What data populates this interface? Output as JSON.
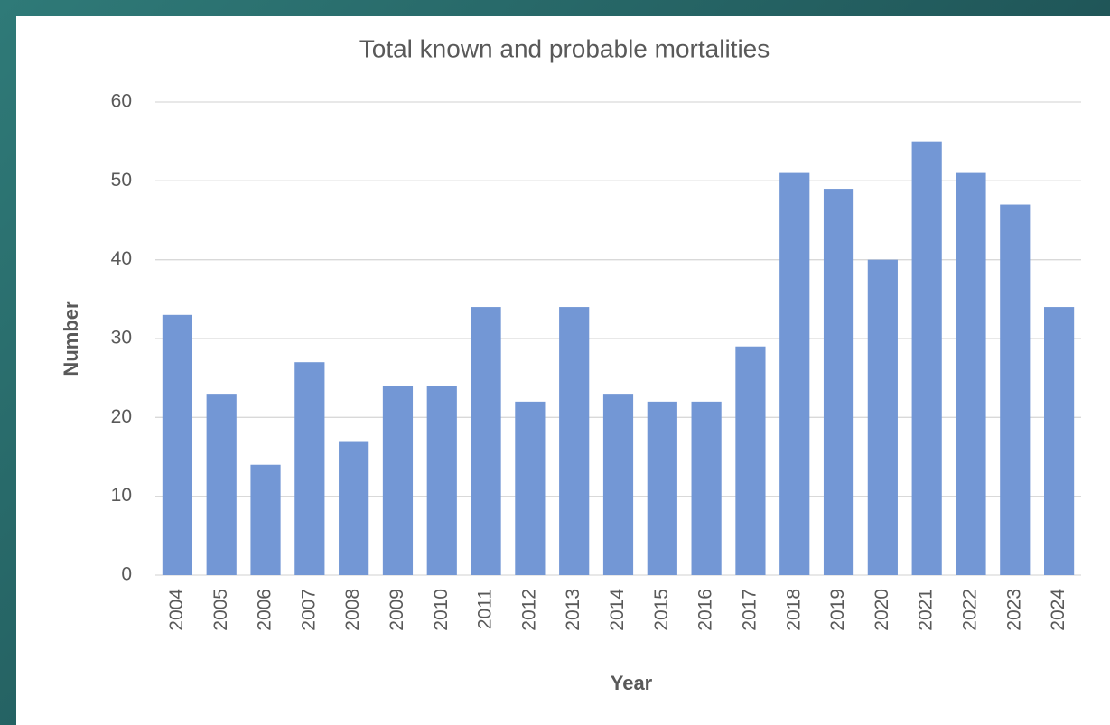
{
  "chart_data": {
    "type": "bar",
    "title": "Total known and probable mortalities",
    "x_label": "Year",
    "y_label": "Number",
    "categories": [
      "2004",
      "2005",
      "2006",
      "2007",
      "2008",
      "2009",
      "2010",
      "2011",
      "2012",
      "2013",
      "2014",
      "2015",
      "2016",
      "2017",
      "2018",
      "2019",
      "2020",
      "2021",
      "2022",
      "2023",
      "2024"
    ],
    "values": [
      33,
      23,
      14,
      27,
      17,
      24,
      24,
      34,
      22,
      34,
      23,
      22,
      22,
      29,
      51,
      49,
      40,
      55,
      51,
      47,
      34
    ],
    "color": "#7397d5",
    "ylim": [
      0,
      60
    ],
    "yticks": [
      0,
      10,
      20,
      30,
      40,
      50,
      60
    ],
    "grid": true
  }
}
